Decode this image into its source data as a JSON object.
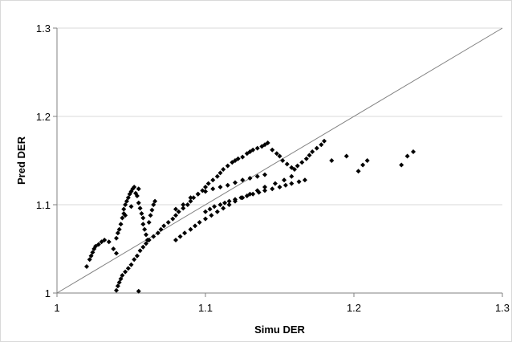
{
  "chart_data": {
    "type": "scatter",
    "title": "",
    "xlabel": "Simu DER",
    "ylabel": "Pred DER",
    "xlim": [
      1,
      1.3
    ],
    "ylim": [
      1,
      1.3
    ],
    "x_ticks": [
      1,
      1.1,
      1.2,
      1.3
    ],
    "y_ticks": [
      1,
      1.1,
      1.2,
      1.3
    ],
    "x_tick_labels": [
      "1",
      "1.1",
      "1.2",
      "1.3"
    ],
    "y_tick_labels": [
      "1",
      "1.1",
      "1.2",
      "1.3"
    ],
    "grid": "horizontal",
    "reference_line": {
      "from": [
        1,
        1
      ],
      "to": [
        1.3,
        1.3
      ]
    },
    "marker": "diamond",
    "colors": {
      "marker": "#000000",
      "grid": "#d9d9d9",
      "axis": "#808080",
      "frame": "#d9d9d9"
    },
    "series": [
      {
        "x": [
          1.02,
          1.022,
          1.023,
          1.024,
          1.025,
          1.026,
          1.028,
          1.03,
          1.032,
          1.035,
          1.038,
          1.04,
          1.04,
          1.041,
          1.042,
          1.043,
          1.044,
          1.045,
          1.045,
          1.046,
          1.046,
          1.047,
          1.048,
          1.049,
          1.05,
          1.05,
          1.051,
          1.052,
          1.053,
          1.054,
          1.055,
          1.055,
          1.056,
          1.057,
          1.058,
          1.058,
          1.059,
          1.06,
          1.061,
          1.062,
          1.063,
          1.064,
          1.065,
          1.066,
          1.04,
          1.041,
          1.042,
          1.043,
          1.044,
          1.046,
          1.048,
          1.05,
          1.052,
          1.054,
          1.055,
          1.056,
          1.058,
          1.06,
          1.062,
          1.065,
          1.068,
          1.07,
          1.072,
          1.075,
          1.078,
          1.08,
          1.082,
          1.085,
          1.088,
          1.09,
          1.092,
          1.095,
          1.098,
          1.1,
          1.102,
          1.105,
          1.108,
          1.11,
          1.112,
          1.115,
          1.118,
          1.12,
          1.122,
          1.125,
          1.128,
          1.13,
          1.132,
          1.135,
          1.138,
          1.14,
          1.142,
          1.145,
          1.148,
          1.15,
          1.152,
          1.155,
          1.158,
          1.16,
          1.162,
          1.165,
          1.168,
          1.17,
          1.172,
          1.175,
          1.178,
          1.18,
          1.185,
          1.195,
          1.203,
          1.206,
          1.209,
          1.232,
          1.236,
          1.24,
          1.1,
          1.103,
          1.106,
          1.11,
          1.113,
          1.116,
          1.12,
          1.124,
          1.128,
          1.132,
          1.136,
          1.14,
          1.145,
          1.15,
          1.154,
          1.158,
          1.163,
          1.167,
          1.08,
          1.083,
          1.086,
          1.09,
          1.093,
          1.096,
          1.1,
          1.104,
          1.108,
          1.112,
          1.116,
          1.12,
          1.125,
          1.13,
          1.135,
          1.14,
          1.147,
          1.153,
          1.158,
          1.08,
          1.085,
          1.09,
          1.095,
          1.1,
          1.105,
          1.11,
          1.115,
          1.12,
          1.125,
          1.13,
          1.135,
          1.14
        ],
        "y": [
          1.03,
          1.038,
          1.042,
          1.046,
          1.05,
          1.053,
          1.055,
          1.058,
          1.06,
          1.058,
          1.05,
          1.045,
          1.062,
          1.068,
          1.072,
          1.078,
          1.085,
          1.09,
          1.095,
          1.1,
          1.088,
          1.104,
          1.108,
          1.112,
          1.115,
          1.098,
          1.118,
          1.12,
          1.113,
          1.11,
          1.118,
          1.102,
          1.096,
          1.09,
          1.085,
          1.078,
          1.072,
          1.066,
          1.06,
          1.08,
          1.088,
          1.094,
          1.1,
          1.104,
          1.003,
          1.008,
          1.012,
          1.016,
          1.02,
          1.024,
          1.028,
          1.032,
          1.038,
          1.042,
          1.002,
          1.048,
          1.052,
          1.056,
          1.06,
          1.064,
          1.068,
          1.072,
          1.076,
          1.08,
          1.084,
          1.088,
          1.092,
          1.096,
          1.1,
          1.104,
          1.108,
          1.112,
          1.116,
          1.12,
          1.124,
          1.128,
          1.132,
          1.136,
          1.14,
          1.144,
          1.148,
          1.15,
          1.152,
          1.154,
          1.158,
          1.16,
          1.162,
          1.164,
          1.166,
          1.168,
          1.17,
          1.162,
          1.158,
          1.155,
          1.15,
          1.146,
          1.142,
          1.14,
          1.144,
          1.148,
          1.152,
          1.156,
          1.16,
          1.164,
          1.168,
          1.172,
          1.15,
          1.155,
          1.138,
          1.145,
          1.15,
          1.145,
          1.155,
          1.16,
          1.092,
          1.095,
          1.098,
          1.1,
          1.102,
          1.104,
          1.106,
          1.108,
          1.11,
          1.112,
          1.114,
          1.116,
          1.118,
          1.12,
          1.122,
          1.124,
          1.126,
          1.128,
          1.06,
          1.064,
          1.068,
          1.072,
          1.076,
          1.08,
          1.084,
          1.088,
          1.092,
          1.096,
          1.1,
          1.104,
          1.108,
          1.112,
          1.116,
          1.12,
          1.124,
          1.128,
          1.132,
          1.095,
          1.1,
          1.108,
          1.112,
          1.115,
          1.118,
          1.12,
          1.122,
          1.125,
          1.128,
          1.13,
          1.132,
          1.134
        ]
      }
    ]
  }
}
